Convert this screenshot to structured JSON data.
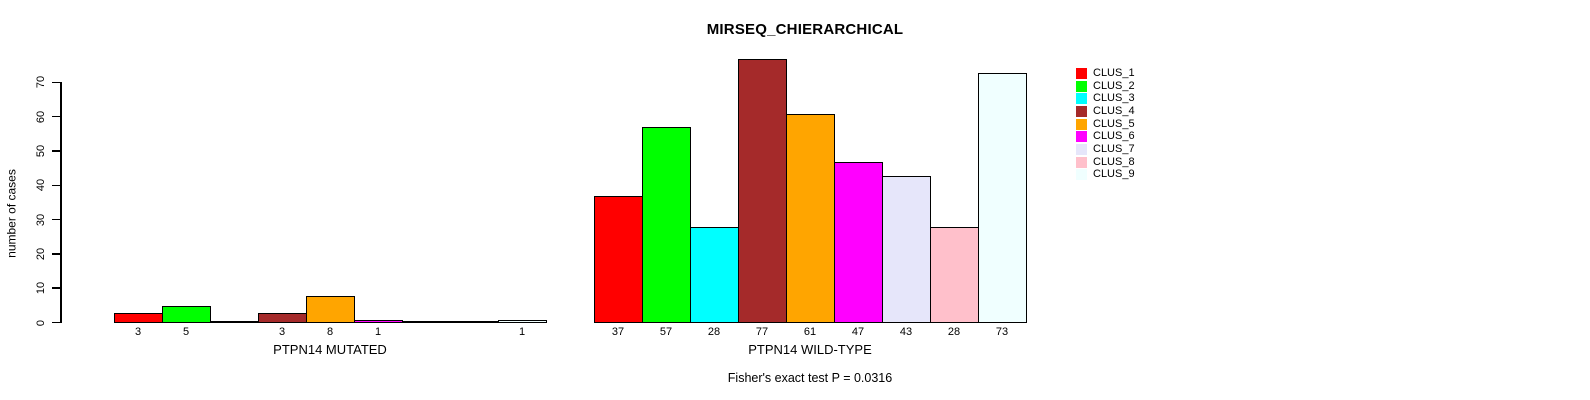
{
  "title": "MIRSEQ_CHIERARCHICAL",
  "y_axis": {
    "label": "number of cases",
    "ticks": [
      0,
      10,
      20,
      30,
      40,
      50,
      60,
      70
    ]
  },
  "footnote": "Fisher's exact test P = 0.0316",
  "legend": {
    "items": [
      {
        "label": "CLUS_1",
        "color": "#ff0000"
      },
      {
        "label": "CLUS_2",
        "color": "#00ff00"
      },
      {
        "label": "CLUS_3",
        "color": "#00ffff"
      },
      {
        "label": "CLUS_4",
        "color": "#a52a2a"
      },
      {
        "label": "CLUS_5",
        "color": "#ffa500"
      },
      {
        "label": "CLUS_6",
        "color": "#ff00ff"
      },
      {
        "label": "CLUS_7",
        "color": "#e6e6fa"
      },
      {
        "label": "CLUS_8",
        "color": "#ffc0cb"
      },
      {
        "label": "CLUS_9",
        "color": "#f0ffff"
      }
    ]
  },
  "chart_data": {
    "type": "bar",
    "title": "MIRSEQ_CHIERARCHICAL",
    "xlabel": "",
    "ylabel": "number of cases",
    "ylim": [
      0,
      70
    ],
    "yticks": [
      0,
      10,
      20,
      30,
      40,
      50,
      60,
      70
    ],
    "grid": false,
    "legend_position": "top-right",
    "categories": [
      "CLUS_1",
      "CLUS_2",
      "CLUS_3",
      "CLUS_4",
      "CLUS_5",
      "CLUS_6",
      "CLUS_7",
      "CLUS_8",
      "CLUS_9"
    ],
    "series_colors": [
      "#ff0000",
      "#00ff00",
      "#00ffff",
      "#a52a2a",
      "#ffa500",
      "#ff00ff",
      "#e6e6fa",
      "#ffc0cb",
      "#f0ffff"
    ],
    "bar_border_color": "#000000",
    "groups": [
      {
        "label": "PTPN14 MUTATED",
        "values": [
          3,
          5,
          0,
          3,
          8,
          1,
          0,
          0,
          1
        ]
      },
      {
        "label": "PTPN14 WILD-TYPE",
        "values": [
          37,
          57,
          28,
          77,
          61,
          47,
          43,
          28,
          73
        ]
      }
    ],
    "annotation": "Fisher's exact test P = 0.0316"
  }
}
